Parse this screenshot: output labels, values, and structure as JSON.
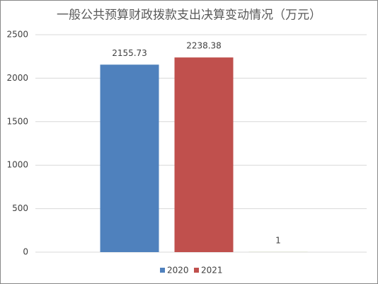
{
  "chart_data": {
    "type": "bar",
    "title": "一般公共预算财政拨款支出决算变动情况（万元）",
    "categories": [
      null
    ],
    "series": [
      {
        "name": "2020",
        "color": "#4f81bd",
        "values": [
          2155.73
        ]
      },
      {
        "name": "2021",
        "color": "#c0504d",
        "values": [
          2238.38
        ]
      },
      {
        "color": "#9bbb59",
        "values": [
          1
        ]
      }
    ],
    "ylim": [
      0,
      2500
    ],
    "yticks": [
      0,
      500,
      1000,
      1500,
      2000,
      2500
    ],
    "grid": true,
    "legend": "bottom"
  }
}
